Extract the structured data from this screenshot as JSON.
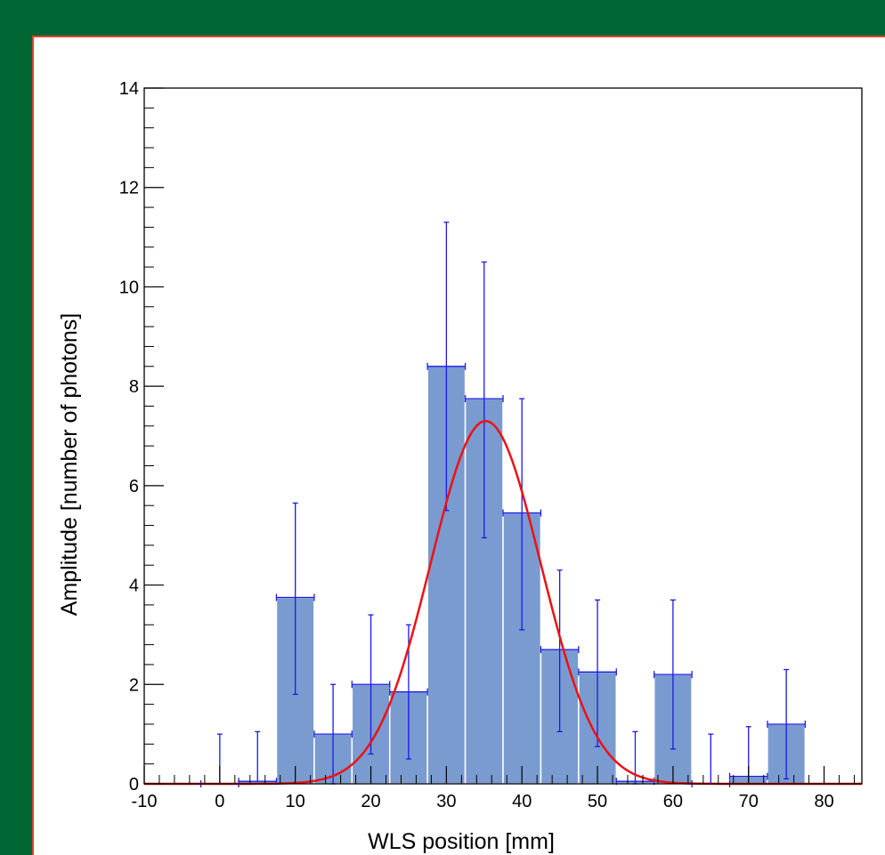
{
  "page": {
    "background": "#006633",
    "frame_border": "#d9442c"
  },
  "chart_data": {
    "type": "bar",
    "xlabel": "WLS position [mm]",
    "ylabel": "Amplitude [number of photons]",
    "xlim": [
      -10,
      85
    ],
    "ylim": [
      0,
      14
    ],
    "x_ticks": [
      -10,
      0,
      10,
      20,
      30,
      40,
      50,
      60,
      70,
      80
    ],
    "y_ticks": [
      0,
      2,
      4,
      6,
      8,
      10,
      12,
      14
    ],
    "x_tick_labels": [
      "-10",
      "0",
      "10",
      "20",
      "30",
      "40",
      "50",
      "60",
      "70",
      "80"
    ],
    "y_tick_labels": [
      "0",
      "2",
      "4",
      "6",
      "8",
      "10",
      "12",
      "14"
    ],
    "bin_width": 5,
    "bins": [
      {
        "x": 0,
        "value": 0.0,
        "err_low": 0.0,
        "err_high": 1.0
      },
      {
        "x": 5,
        "value": 0.05,
        "err_low": 0.0,
        "err_high": 1.0
      },
      {
        "x": 10,
        "value": 3.75,
        "err_low": 1.95,
        "err_high": 1.9
      },
      {
        "x": 15,
        "value": 1.0,
        "err_low": 1.0,
        "err_high": 1.0
      },
      {
        "x": 20,
        "value": 2.0,
        "err_low": 1.4,
        "err_high": 1.4
      },
      {
        "x": 25,
        "value": 1.85,
        "err_low": 1.35,
        "err_high": 1.35
      },
      {
        "x": 30,
        "value": 8.4,
        "err_low": 2.9,
        "err_high": 2.9
      },
      {
        "x": 35,
        "value": 7.75,
        "err_low": 2.8,
        "err_high": 2.75
      },
      {
        "x": 40,
        "value": 5.45,
        "err_low": 2.35,
        "err_high": 2.3
      },
      {
        "x": 45,
        "value": 2.7,
        "err_low": 1.65,
        "err_high": 1.6
      },
      {
        "x": 50,
        "value": 2.25,
        "err_low": 1.5,
        "err_high": 1.45
      },
      {
        "x": 55,
        "value": 0.05,
        "err_low": 0.05,
        "err_high": 1.0
      },
      {
        "x": 60,
        "value": 2.2,
        "err_low": 1.5,
        "err_high": 1.5
      },
      {
        "x": 65,
        "value": 0.0,
        "err_low": 0.0,
        "err_high": 1.0
      },
      {
        "x": 70,
        "value": 0.15,
        "err_low": 0.15,
        "err_high": 1.0
      },
      {
        "x": 75,
        "value": 1.2,
        "err_low": 1.1,
        "err_high": 1.1
      }
    ],
    "fit": {
      "type": "gaussian",
      "amplitude": 7.3,
      "mean": 35.2,
      "sigma": 7.3
    },
    "colors": {
      "bar": "#7a9bd0",
      "error": "#1a1ae6",
      "fit": "#ee1111"
    },
    "grid": false,
    "legend": "none"
  }
}
